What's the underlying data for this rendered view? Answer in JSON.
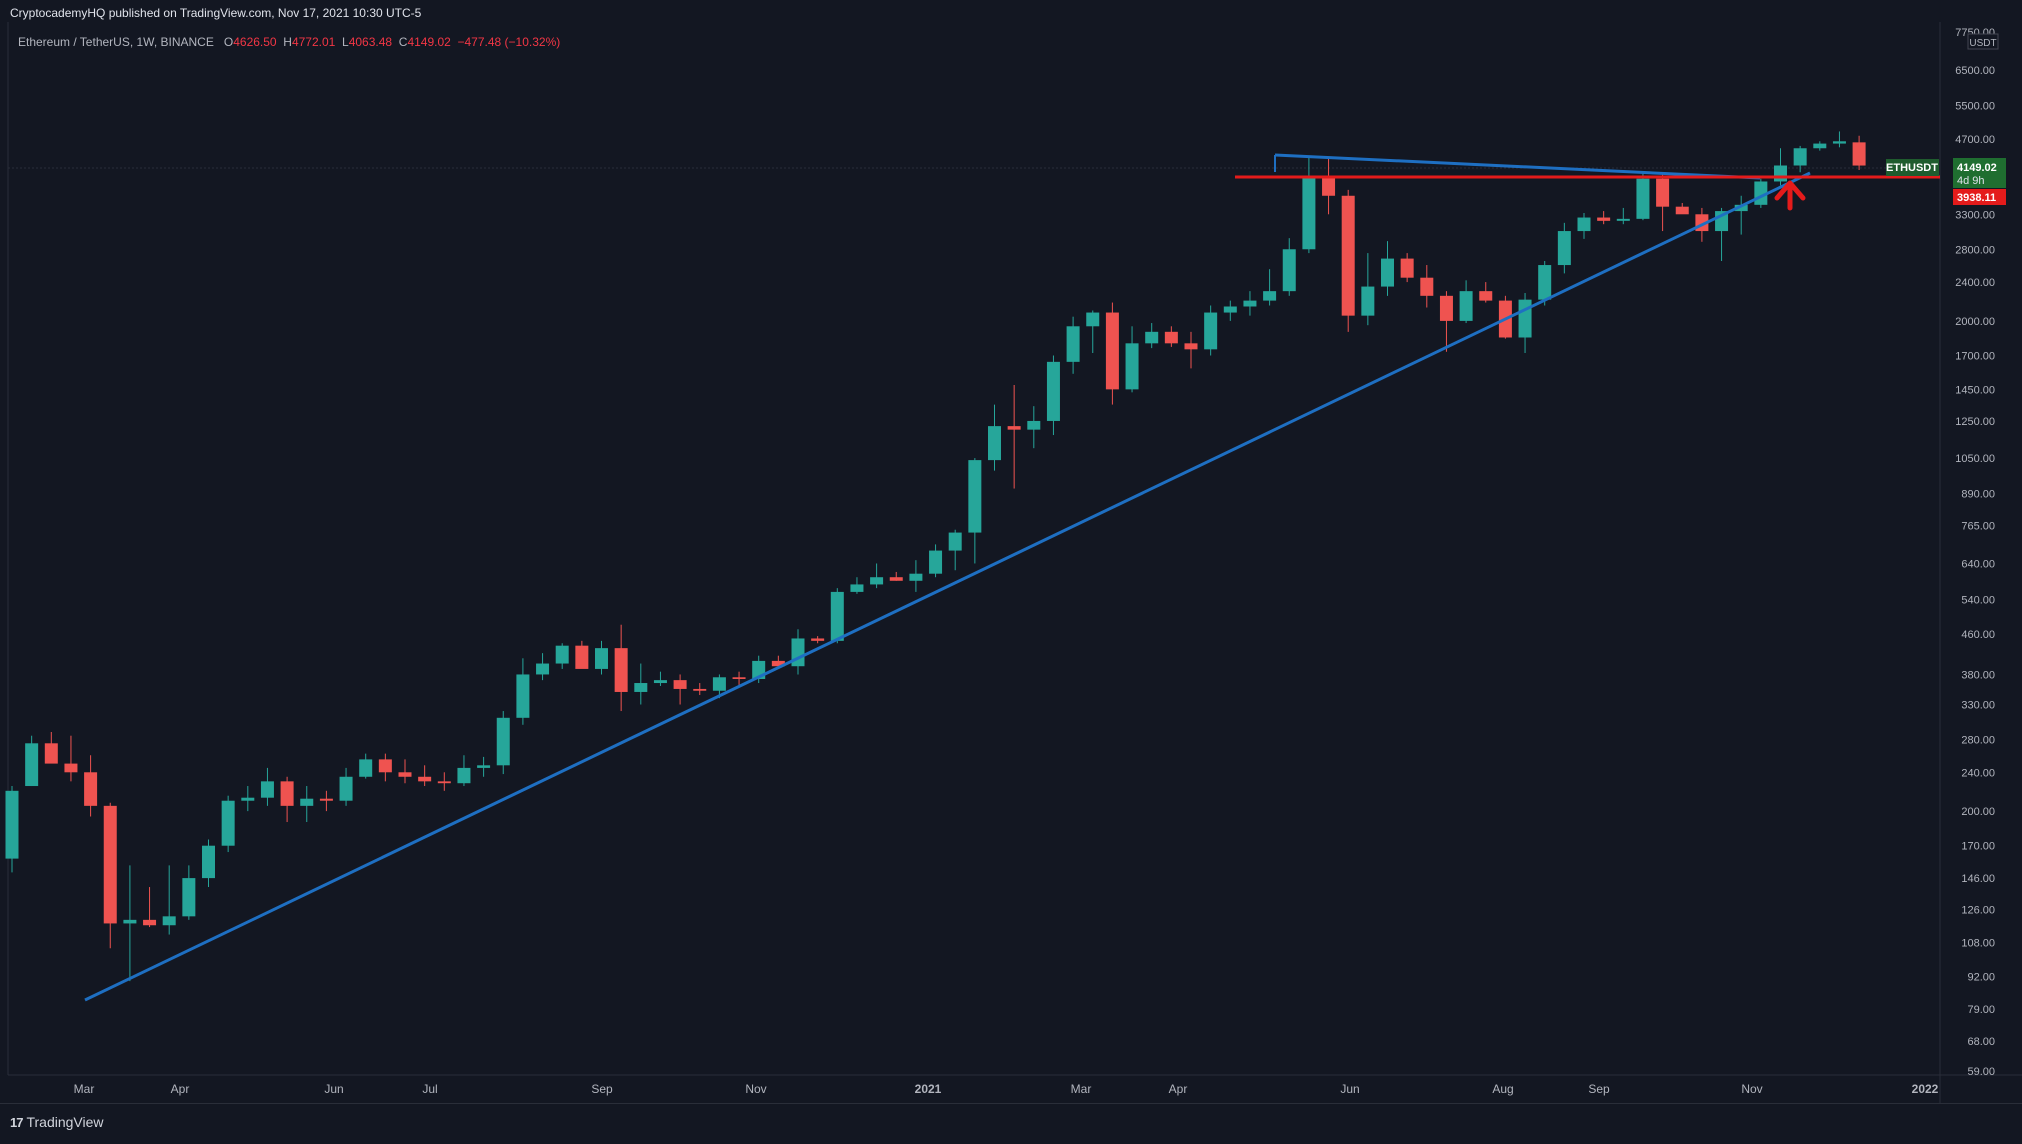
{
  "header": {
    "published": "CryptocademyHQ published on TradingView.com, Nov 17, 2021 10:30 UTC-5"
  },
  "legend": {
    "symbol": "Ethereum / TetherUS, 1W, BINANCE",
    "o_label": "O",
    "o": "4626.50",
    "h_label": "H",
    "h": "4772.01",
    "l_label": "L",
    "l": "4063.48",
    "c_label": "C",
    "c": "4149.02",
    "change": "−477.48 (−10.32%)"
  },
  "price_axis": {
    "currency": "USDT",
    "labels": [
      "7750.00",
      "6500.00",
      "5500.00",
      "4700.00",
      "3300.00",
      "2800.00",
      "2400.00",
      "2000.00",
      "1700.00",
      "1450.00",
      "1250.00",
      "1050.00",
      "890.00",
      "765.00",
      "640.00",
      "540.00",
      "460.00",
      "380.00",
      "330.00",
      "280.00",
      "240.00",
      "200.00",
      "170.00",
      "146.00",
      "126.00",
      "108.00",
      "92.00",
      "79.00",
      "68.00",
      "59.00"
    ],
    "symbol_tag": "ETHUSDT",
    "last_price": "4149.02",
    "countdown": "4d 9h",
    "line_price": "3938.11"
  },
  "time_axis": {
    "labels": [
      "Mar",
      "Apr",
      "Jun",
      "Jul",
      "Sep",
      "Nov",
      "2021",
      "Mar",
      "Apr",
      "Jun",
      "Aug",
      "Sep",
      "Nov",
      "2022"
    ]
  },
  "colors": {
    "up": "#26a69a",
    "down": "#ef5350",
    "trendline": "#1e6fc2",
    "resistance": "#e41b1b",
    "background": "#131722"
  },
  "chart_data": {
    "type": "candlestick",
    "symbol": "ETHUSDT",
    "interval": "1W",
    "scale": "log",
    "ylim": [
      56,
      7750
    ],
    "candles": [
      [
        160,
        150,
        220,
        225
      ],
      [
        225,
        225,
        275,
        285
      ],
      [
        275,
        265,
        250,
        290
      ],
      [
        250,
        230,
        240,
        285
      ],
      [
        240,
        195,
        205,
        260
      ],
      [
        205,
        105,
        118,
        208
      ],
      [
        118,
        90,
        120,
        155
      ],
      [
        120,
        116,
        117,
        140
      ],
      [
        117,
        112,
        122,
        155
      ],
      [
        122,
        120,
        146,
        155
      ],
      [
        146,
        140,
        170,
        175
      ],
      [
        170,
        165,
        210,
        215
      ],
      [
        210,
        200,
        213,
        225
      ],
      [
        213,
        205,
        230,
        245
      ],
      [
        230,
        190,
        205,
        235
      ],
      [
        205,
        190,
        212,
        225
      ],
      [
        212,
        200,
        210,
        220
      ],
      [
        210,
        205,
        235,
        245
      ],
      [
        235,
        233,
        255,
        262
      ],
      [
        255,
        230,
        240,
        262
      ],
      [
        240,
        228,
        235,
        255
      ],
      [
        235,
        225,
        230,
        248
      ],
      [
        230,
        220,
        228,
        240
      ],
      [
        228,
        225,
        245,
        260
      ],
      [
        245,
        235,
        248,
        258
      ],
      [
        248,
        238,
        310,
        320
      ],
      [
        310,
        300,
        380,
        410
      ],
      [
        380,
        370,
        400,
        420
      ],
      [
        400,
        390,
        435,
        440
      ],
      [
        435,
        400,
        390,
        445
      ],
      [
        390,
        380,
        430,
        445
      ],
      [
        430,
        320,
        350,
        480
      ],
      [
        350,
        330,
        365,
        400
      ],
      [
        365,
        360,
        370,
        385
      ],
      [
        370,
        330,
        355,
        380
      ],
      [
        355,
        345,
        352,
        365
      ],
      [
        352,
        340,
        375,
        380
      ],
      [
        375,
        360,
        372,
        385
      ],
      [
        372,
        365,
        405,
        415
      ],
      [
        405,
        400,
        395,
        415
      ],
      [
        395,
        380,
        450,
        470
      ],
      [
        450,
        440,
        445,
        455
      ],
      [
        445,
        440,
        560,
        570
      ],
      [
        560,
        555,
        580,
        600
      ],
      [
        580,
        570,
        600,
        640
      ],
      [
        600,
        590,
        590,
        615
      ],
      [
        590,
        560,
        610,
        650
      ],
      [
        610,
        600,
        680,
        700
      ],
      [
        680,
        620,
        740,
        750
      ],
      [
        740,
        640,
        1040,
        1050
      ],
      [
        1040,
        990,
        1220,
        1350
      ],
      [
        1220,
        910,
        1200,
        1480
      ],
      [
        1200,
        1100,
        1250,
        1340
      ],
      [
        1250,
        1170,
        1650,
        1700
      ],
      [
        1650,
        1560,
        1950,
        2040
      ],
      [
        1950,
        1720,
        2080,
        2100
      ],
      [
        2080,
        1350,
        1450,
        2180
      ],
      [
        1450,
        1430,
        1800,
        1950
      ],
      [
        1800,
        1760,
        1900,
        1980
      ],
      [
        1900,
        1770,
        1800,
        1950
      ],
      [
        1800,
        1600,
        1750,
        1900
      ],
      [
        1750,
        1700,
        2080,
        2150
      ],
      [
        2080,
        2000,
        2140,
        2200
      ],
      [
        2140,
        2050,
        2200,
        2300
      ],
      [
        2200,
        2150,
        2300,
        2550
      ],
      [
        2300,
        2250,
        2800,
        2950
      ],
      [
        2800,
        2750,
        3950,
        4350
      ],
      [
        3950,
        3300,
        3600,
        4300
      ],
      [
        3600,
        1900,
        2050,
        3700
      ],
      [
        2050,
        1960,
        2350,
        2750
      ],
      [
        2350,
        2250,
        2680,
        2910
      ],
      [
        2680,
        2400,
        2450,
        2750
      ],
      [
        2450,
        2130,
        2250,
        2600
      ],
      [
        2250,
        1730,
        2000,
        2300
      ],
      [
        2000,
        1980,
        2300,
        2420
      ],
      [
        2300,
        2180,
        2200,
        2400
      ],
      [
        2200,
        1840,
        1850,
        2250
      ],
      [
        1850,
        1720,
        2210,
        2280
      ],
      [
        2210,
        2150,
        2600,
        2650
      ],
      [
        2600,
        2500,
        3050,
        3170
      ],
      [
        3050,
        2940,
        3250,
        3320
      ],
      [
        3250,
        3150,
        3200,
        3350
      ],
      [
        3200,
        3150,
        3230,
        3400
      ],
      [
        3230,
        3210,
        3900,
        4000
      ],
      [
        3900,
        3050,
        3420,
        4010
      ],
      [
        3420,
        3400,
        3300,
        3480
      ],
      [
        3300,
        2900,
        3050,
        3400
      ],
      [
        3050,
        2650,
        3350,
        3400
      ],
      [
        3350,
        3000,
        3450,
        3600
      ],
      [
        3450,
        3400,
        3850,
        3900
      ],
      [
        3850,
        3780,
        4150,
        4500
      ],
      [
        4150,
        4020,
        4500,
        4550
      ],
      [
        4500,
        4450,
        4600,
        4650
      ],
      [
        4600,
        4520,
        4650,
        4870
      ],
      [
        4626.5,
        4063.48,
        4149.02,
        4772.01
      ]
    ],
    "annotations": [
      "ascending trendline",
      "descending trendline from May 2021 high",
      "horizontal resistance at 3938.11",
      "red up arrow"
    ]
  }
}
